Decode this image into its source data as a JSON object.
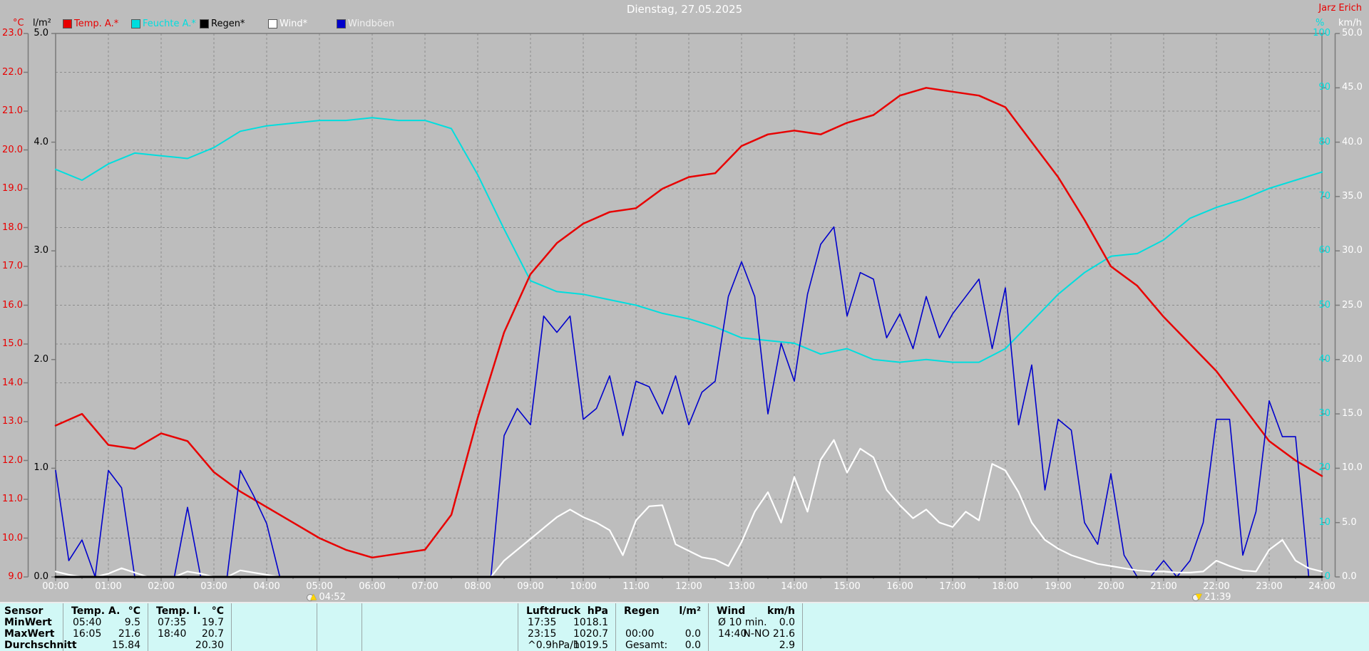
{
  "header": {
    "title": "Dienstag, 27.05.2025",
    "author": "Jarz Erich"
  },
  "axes_units": {
    "temp": "°C",
    "rain": "l/m²",
    "humidity": "%",
    "wind": "km/h"
  },
  "legend": {
    "items": [
      {
        "label": "Temp. A.*",
        "swatch": "#e80000",
        "text_color": "#e80000"
      },
      {
        "label": "Feuchte A.*",
        "swatch": "#00dede",
        "text_color": "#00dede"
      },
      {
        "label": "Regen*",
        "swatch": "#000000",
        "text_color": "#000000"
      },
      {
        "label": "Wind*",
        "swatch": "#ffffff",
        "text_color": "#ffffff"
      },
      {
        "label": "Windböen",
        "swatch": "#0000cc",
        "text_color": "#f0f0f0"
      }
    ]
  },
  "chart_data": {
    "type": "line",
    "title": "Dienstag, 27.05.2025",
    "grid": "dashed, vertical every 1 h, horizontal every 1 °C",
    "legend_position": "top",
    "axes": {
      "time": {
        "min": 0,
        "max": 24,
        "label_step_h": 1,
        "tick_minor_h": 0.5,
        "format": "HH:00"
      },
      "temp": {
        "side": "left",
        "unit": "°C",
        "min": 9,
        "max": 23,
        "step": 1,
        "color": "#e80000"
      },
      "rain": {
        "side": "left",
        "unit": "l/m²",
        "min": 0,
        "max": 5,
        "step": 1,
        "color": "#000000"
      },
      "humidity": {
        "side": "right",
        "unit": "%",
        "min": 0,
        "max": 100,
        "step": 10,
        "color": "#00dede"
      },
      "wind": {
        "side": "right",
        "unit": "km/h",
        "min": 0,
        "max": 50,
        "step": 5,
        "color": "#ffffff"
      }
    },
    "series": [
      {
        "name": "Feuchte A.",
        "axis": "humidity",
        "color": "#00dede",
        "width": 2,
        "start_h": 0,
        "step_h": 0.5,
        "values": [
          75,
          73,
          76,
          78,
          77.5,
          77,
          79,
          82,
          83,
          83.5,
          84,
          84,
          84.5,
          84,
          84,
          82.5,
          74,
          64,
          54.5,
          52.5,
          52,
          51,
          50,
          48.5,
          47.5,
          46,
          44,
          43.5,
          43,
          41,
          42,
          40,
          39.5,
          40,
          39.5,
          39.5,
          42,
          47,
          52,
          56,
          59,
          59.5,
          62,
          66,
          68,
          69.5,
          71.5,
          73,
          74.5
        ]
      },
      {
        "name": "Temp. A.",
        "axis": "temp",
        "color": "#e80000",
        "width": 2.5,
        "start_h": 0,
        "step_h": 0.5,
        "values": [
          12.9,
          13.2,
          12.4,
          12.3,
          12.7,
          12.5,
          11.7,
          11.2,
          10.8,
          10.4,
          10.0,
          9.7,
          9.5,
          9.6,
          9.7,
          10.6,
          13.1,
          15.3,
          16.8,
          17.6,
          18.1,
          18.4,
          18.5,
          19.0,
          19.3,
          19.4,
          20.1,
          20.4,
          20.5,
          20.4,
          20.7,
          20.9,
          21.4,
          21.6,
          21.5,
          21.4,
          21.1,
          20.2,
          19.3,
          18.2,
          17.0,
          16.5,
          15.7,
          15.0,
          14.3,
          13.4,
          12.5,
          12.0,
          11.6
        ]
      },
      {
        "name": "Windböen",
        "axis": "wind",
        "color": "#0000cc",
        "width": 1.6,
        "start_h": 0,
        "step_h": 0.25,
        "values": [
          9.8,
          1.5,
          3.4,
          0,
          9.8,
          8.2,
          0,
          0,
          0,
          0,
          6.4,
          0,
          0,
          0,
          9.8,
          7.5,
          4.9,
          0,
          0,
          0,
          0,
          0,
          0,
          0,
          0,
          0,
          0,
          0,
          0,
          0,
          0,
          0,
          0,
          0,
          13,
          15.5,
          14,
          24,
          22.5,
          24,
          14.5,
          15.5,
          18.5,
          13,
          18,
          17.5,
          15,
          18.5,
          14,
          17,
          18,
          25.8,
          29,
          25.8,
          15,
          21.5,
          18,
          26,
          30.6,
          32.2,
          24,
          28,
          27.4,
          22,
          24.2,
          21,
          25.8,
          22,
          24.2,
          25.8,
          27.4,
          21,
          26.6,
          14,
          19.5,
          8,
          14.5,
          13.5,
          5,
          3,
          9.5,
          2,
          0,
          0,
          1.5,
          0,
          1.5,
          5,
          14.5,
          14.5,
          2,
          6,
          16.2,
          12.9,
          12.9,
          0,
          0
        ]
      },
      {
        "name": "Wind",
        "axis": "wind",
        "color": "#ffffff",
        "width": 2.2,
        "start_h": 0,
        "step_h": 0.25,
        "values": [
          0.5,
          0.2,
          0,
          0,
          0.3,
          0.8,
          0.4,
          0,
          0,
          0,
          0.5,
          0.3,
          0,
          0,
          0.6,
          0.4,
          0.2,
          0,
          0,
          0,
          0,
          0,
          0,
          0,
          0,
          0,
          0,
          0,
          0,
          0,
          0,
          0,
          0,
          0,
          1.5,
          2.5,
          3.5,
          4.5,
          5.5,
          6.2,
          5.5,
          5.0,
          4.3,
          2.0,
          5.2,
          6.5,
          6.6,
          3.0,
          2.4,
          1.8,
          1.6,
          1.0,
          3.2,
          6.0,
          7.8,
          5.0,
          9.2,
          6.0,
          10.8,
          12.6,
          9.6,
          11.8,
          11.0,
          8.0,
          6.6,
          5.4,
          6.2,
          5.0,
          4.6,
          6.0,
          5.2,
          10.4,
          9.8,
          7.8,
          5.0,
          3.4,
          2.6,
          2.0,
          1.6,
          1.2,
          1.0,
          0.8,
          0.6,
          0.5,
          0.5,
          0.4,
          0.4,
          0.5,
          1.5,
          1.0,
          0.6,
          0.5,
          2.5,
          3.4,
          1.5,
          0.8,
          0.5
        ]
      },
      {
        "name": "Regen",
        "axis": "rain",
        "color": "#000000",
        "width": 3,
        "start_h": 0,
        "step_h": 24,
        "values": [
          0,
          0
        ]
      }
    ],
    "markers": [
      {
        "type": "sunrise",
        "time": "04:52",
        "h": 4.87
      },
      {
        "type": "sunset",
        "time": "21:39",
        "h": 21.65
      }
    ]
  },
  "stats_table": {
    "row_labels": [
      "Sensor",
      "MinWert",
      "MaxWert",
      "Durchschnitt"
    ],
    "columns": [
      {
        "header": "Temp. A.",
        "unit": "°C",
        "rows": [
          [
            "05:40",
            "9.5"
          ],
          [
            "16:05",
            "21.6"
          ],
          [
            "",
            "15.84"
          ]
        ]
      },
      {
        "header": "Temp. I.",
        "unit": "°C",
        "rows": [
          [
            "07:35",
            "19.7"
          ],
          [
            "18:40",
            "20.7"
          ],
          [
            "",
            "20.30"
          ]
        ]
      },
      {
        "header": "Luftdruck",
        "unit": "hPa",
        "rows": [
          [
            "17:35",
            "1018.1"
          ],
          [
            "23:15",
            "1020.7"
          ],
          [
            "^0.9hPa/h",
            "1019.5"
          ]
        ]
      },
      {
        "header": "Regen",
        "unit": "l/m²",
        "rows": [
          [
            "",
            ""
          ],
          [
            "00:00",
            "0.0"
          ],
          [
            "Gesamt:",
            "0.0"
          ]
        ]
      },
      {
        "header": "Wind",
        "unit": "km/h",
        "rows": [
          [
            "Ø 10 min.",
            "0.0"
          ],
          [
            "14:40",
            "N-NO 21.6"
          ],
          [
            "",
            "2.9"
          ]
        ]
      }
    ]
  }
}
